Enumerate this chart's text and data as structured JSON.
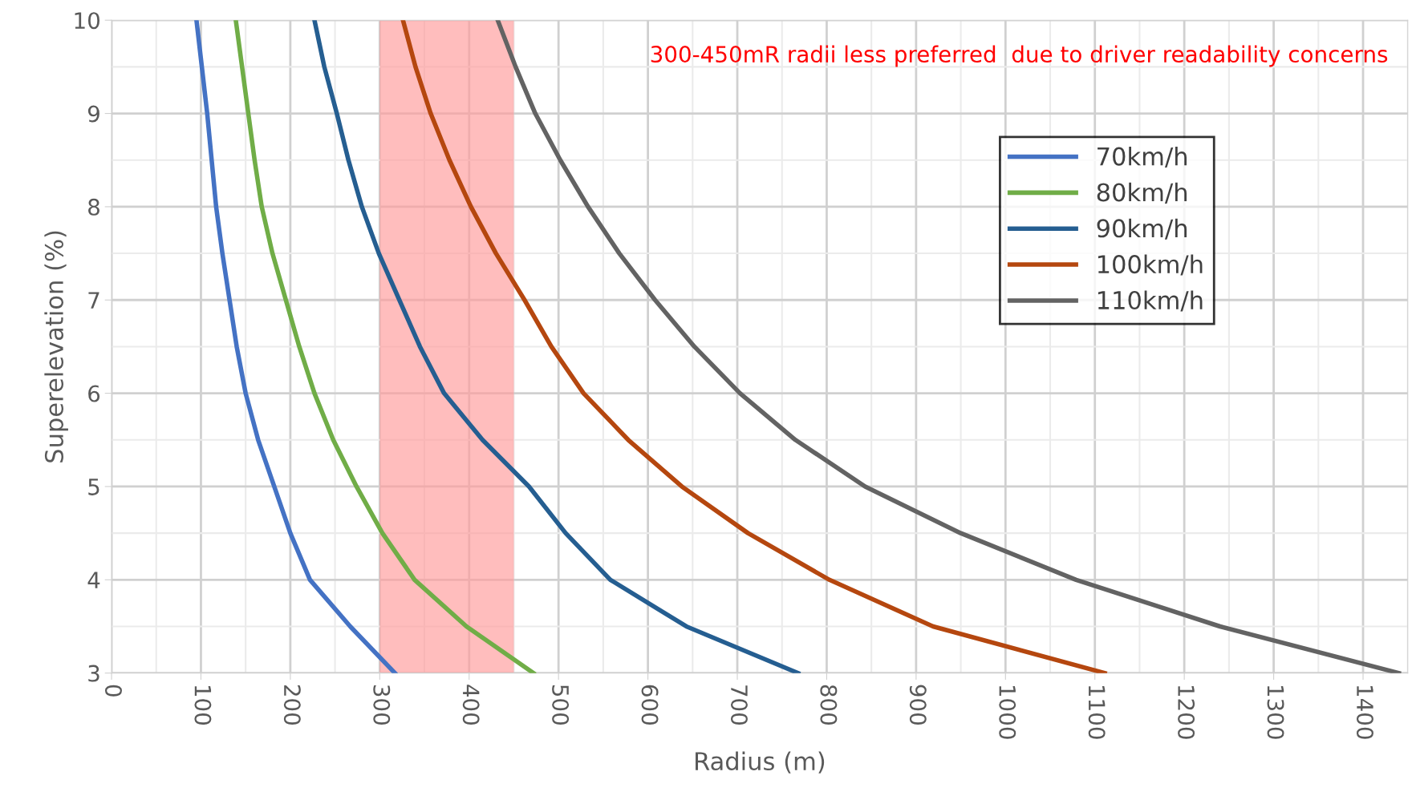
{
  "chart_data": {
    "type": "line",
    "xlabel": "Radius (m)",
    "ylabel": "Superelevation (%)",
    "xlim": [
      0,
      1450
    ],
    "xticks": [
      0,
      100,
      200,
      300,
      400,
      500,
      600,
      700,
      800,
      900,
      1000,
      1100,
      1200,
      1300,
      1400
    ],
    "ylim": [
      3,
      10
    ],
    "yticks": [
      3,
      4,
      5,
      6,
      7,
      8,
      9,
      10
    ],
    "grid": true,
    "legend": "top right",
    "marker": "none",
    "line_style": "solid",
    "bands": [
      {
        "axis": "x",
        "from": 300,
        "to": 450,
        "color": "#ff9999"
      }
    ],
    "annotations": [
      "300-450mR radii less preferred  due to driver readability concerns"
    ],
    "series": [
      {
        "name": "70km/h",
        "color": "#4472c4",
        "x": [
          95,
          101,
          107,
          112,
          117,
          124,
          132,
          140,
          150,
          164,
          182,
          200,
          222,
          267,
          317
        ],
        "values": [
          10,
          9.5,
          9,
          8.5,
          8,
          7.5,
          7,
          6.5,
          6,
          5.5,
          5,
          4.5,
          4,
          3.5,
          3
        ]
      },
      {
        "name": "80km/h",
        "color": "#70ad47",
        "x": [
          139,
          146,
          153,
          160,
          168,
          180,
          195,
          210,
          227,
          248,
          274,
          303,
          339,
          397,
          472
        ],
        "values": [
          10,
          9.5,
          9,
          8.5,
          8,
          7.5,
          7,
          6.5,
          6,
          5.5,
          5,
          4.5,
          4,
          3.5,
          3
        ]
      },
      {
        "name": "90km/h",
        "color": "#255e91",
        "x": [
          227,
          238,
          252,
          265,
          280,
          299,
          322,
          345,
          372,
          415,
          467,
          508,
          558,
          643,
          768
        ],
        "values": [
          10,
          9.5,
          9,
          8.5,
          8,
          7.5,
          7,
          6.5,
          6,
          5.5,
          5,
          4.5,
          4,
          3.5,
          3
        ]
      },
      {
        "name": "100km/h",
        "color": "#b5470f",
        "x": [
          326,
          340,
          357,
          378,
          402,
          430,
          462,
          492,
          528,
          578,
          638,
          712,
          803,
          919,
          1111
        ],
        "values": [
          10,
          9.5,
          9,
          8.5,
          8,
          7.5,
          7,
          6.5,
          6,
          5.5,
          5,
          4.5,
          4,
          3.5,
          3
        ]
      },
      {
        "name": "110km/h",
        "color": "#636363",
        "x": [
          432,
          452,
          474,
          502,
          533,
          568,
          608,
          652,
          703,
          765,
          843,
          950,
          1079,
          1240,
          1440
        ],
        "values": [
          10,
          9.5,
          9,
          8.5,
          8,
          7.5,
          7,
          6.5,
          6,
          5.5,
          5,
          4.5,
          4,
          3.5,
          3
        ]
      }
    ]
  }
}
